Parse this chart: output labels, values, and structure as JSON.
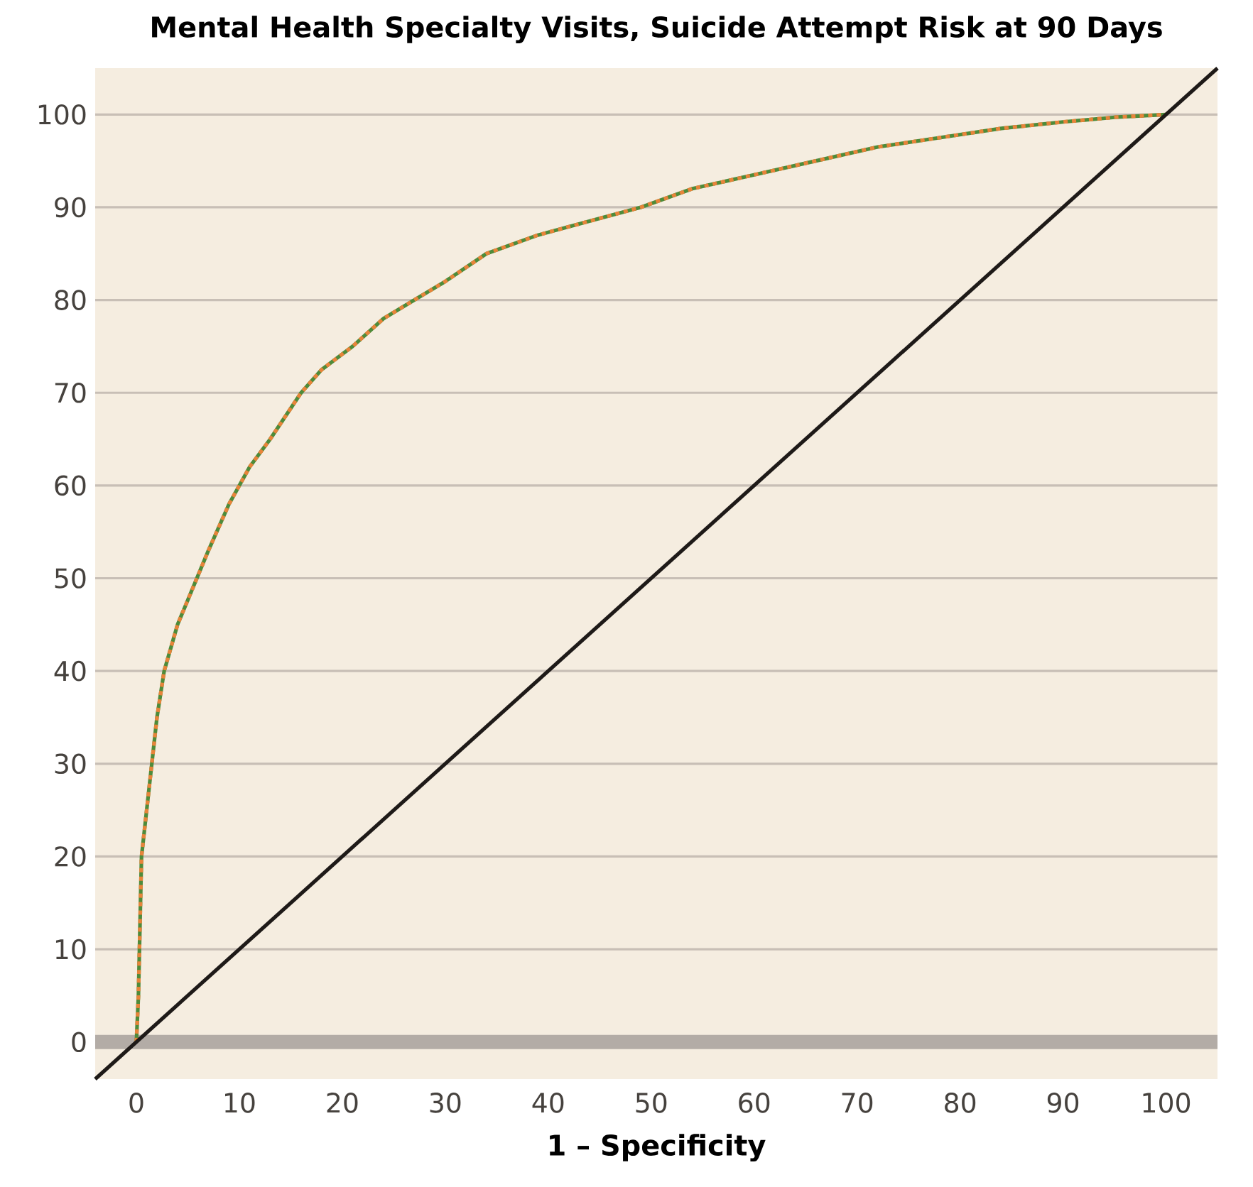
{
  "chart_data": {
    "type": "line",
    "title": "Mental Health Specialty Visits, Suicide Attempt Risk at 90 Days",
    "xlabel": "1 – Specificity",
    "xlim": [
      -4,
      105
    ],
    "ylim": [
      -4,
      105
    ],
    "xticks": [
      0,
      10,
      20,
      30,
      40,
      50,
      60,
      70,
      80,
      90,
      100
    ],
    "yticks": [
      0,
      10,
      20,
      30,
      40,
      50,
      60,
      70,
      80,
      90,
      100
    ],
    "grid": "y",
    "marker": "none",
    "ref_lines": [
      {
        "axis": "y",
        "value": 0,
        "color": "#b3aca6"
      }
    ],
    "series": [
      {
        "color": "#4e8b3a",
        "line_style": "solid",
        "x": [
          0,
          0.2,
          0.3,
          0.5,
          1,
          1.5,
          2,
          2.7,
          4,
          5.5,
          7,
          9,
          11,
          13,
          16,
          18,
          21,
          24,
          27,
          30,
          34,
          39,
          44,
          49,
          54,
          60,
          66,
          72,
          78,
          84,
          90,
          95,
          100
        ],
        "values": [
          0,
          5,
          10,
          20,
          25,
          30,
          35,
          40,
          45,
          49,
          53,
          58,
          62,
          65,
          70,
          72.5,
          75,
          78,
          80,
          82,
          85,
          87,
          88.5,
          90,
          92,
          93.5,
          95,
          96.5,
          97.5,
          98.5,
          99.2,
          99.7,
          100
        ]
      },
      {
        "color": "#e8843a",
        "line_style": "dashed",
        "x": [
          0,
          0.2,
          0.3,
          0.5,
          1,
          1.5,
          2,
          2.7,
          4,
          5.5,
          7,
          9,
          11,
          13,
          16,
          18,
          21,
          24,
          27,
          30,
          34,
          39,
          44,
          49,
          54,
          60,
          66,
          72,
          78,
          84,
          90,
          95,
          100
        ],
        "values": [
          0,
          5,
          10,
          20,
          25,
          30,
          35,
          40,
          45,
          49,
          53,
          58,
          62,
          65,
          70,
          72.5,
          75,
          78,
          80,
          82,
          85,
          87,
          88.5,
          90,
          92,
          93.5,
          95,
          96.5,
          97.5,
          98.5,
          99.2,
          99.7,
          100
        ]
      },
      {
        "color": "#1e1a18",
        "line_style": "solid",
        "x": [
          -4,
          105
        ],
        "values": [
          -4,
          105
        ]
      }
    ]
  }
}
